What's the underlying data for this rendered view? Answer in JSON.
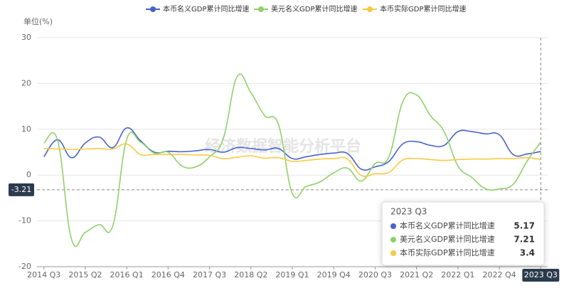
{
  "chart_data": {
    "type": "line",
    "y_axis_label": "单位(%)",
    "categories": [
      "2014 Q3",
      null,
      null,
      "2015 Q2",
      null,
      null,
      "2016 Q1",
      null,
      null,
      "2016 Q4",
      null,
      null,
      "2017 Q3",
      null,
      null,
      "2018 Q2",
      null,
      null,
      "2019 Q1",
      null,
      null,
      "2019 Q4",
      null,
      null,
      "2020 Q3",
      null,
      null,
      "2021 Q2",
      null,
      null,
      "2022 Q1",
      null,
      null,
      "2022 Q4",
      null,
      null,
      "2023 Q3"
    ],
    "series": [
      {
        "name": "本币名义GDP累计同比增速",
        "color": "#4962c9",
        "values": [
          4.0,
          7.7,
          3.8,
          7.0,
          8.3,
          6.0,
          10.3,
          7.5,
          5.0,
          5.2,
          5.1,
          5.3,
          5.6,
          5.0,
          6.0,
          5.8,
          5.5,
          5.8,
          3.6,
          4.0,
          4.5,
          4.8,
          4.7,
          1.3,
          1.8,
          3.0,
          6.8,
          7.3,
          6.5,
          6.5,
          9.5,
          9.5,
          9.0,
          8.8,
          4.5,
          4.6,
          5.17
        ]
      },
      {
        "name": "美元名义GDP累计同比增速",
        "color": "#8fd16a",
        "values": [
          7.0,
          7.5,
          -14.0,
          -12.5,
          -10.8,
          -11.0,
          7.8,
          7.2,
          4.8,
          5.0,
          2.0,
          1.8,
          4.0,
          8.0,
          21.5,
          18.0,
          13.0,
          11.0,
          -4.0,
          -2.5,
          -1.5,
          0.5,
          1.5,
          -1.3,
          2.5,
          4.0,
          16.0,
          17.5,
          13.0,
          9.5,
          2.0,
          -0.5,
          -3.0,
          -3.0,
          -2.0,
          3.0,
          7.21
        ]
      },
      {
        "name": "本币实际GDP累计同比增速",
        "color": "#f9c944",
        "values": [
          5.8,
          5.7,
          5.6,
          5.7,
          5.8,
          5.7,
          6.8,
          4.5,
          4.5,
          4.5,
          4.5,
          4.4,
          4.3,
          3.6,
          3.9,
          4.2,
          3.7,
          3.8,
          3.0,
          3.2,
          3.5,
          3.6,
          3.5,
          -0.1,
          0.3,
          0.6,
          3.3,
          3.6,
          3.4,
          3.2,
          3.4,
          3.5,
          3.5,
          3.6,
          3.6,
          3.8,
          3.4
        ]
      }
    ],
    "ylim": [
      -20,
      30
    ],
    "yticks": [
      -20,
      -10,
      0,
      10,
      20,
      30
    ],
    "grid": true,
    "axis_pointer": {
      "y": -3.21
    },
    "watermark": "经济数据智能分析平台"
  }
}
